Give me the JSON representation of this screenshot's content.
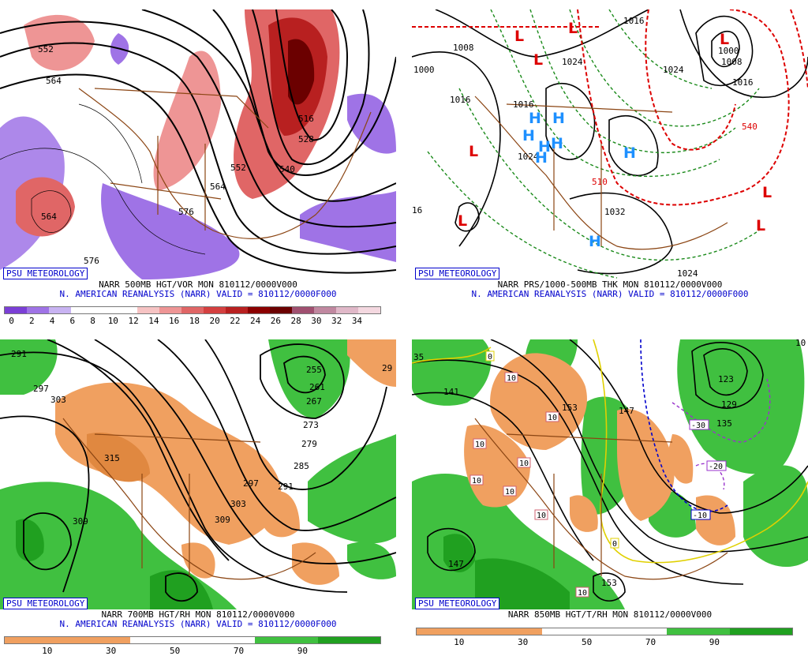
{
  "panels": [
    {
      "id": "p1",
      "badge": "PSU METEOROLOGY",
      "caption1": "NARR 500MB HGT/VOR MON 810112/0000V000",
      "caption2": "N. AMERICAN REANALYSIS (NARR) VALID = 810112/0000F000",
      "colorbar": {
        "colors": [
          "#7b3fd6",
          "#9f73e6",
          "#c8b3f2",
          "#ffffff",
          "#ffffff",
          "#ffffff",
          "#f6c3c3",
          "#ee9595",
          "#e06666",
          "#d44040",
          "#b82020",
          "#8b0000",
          "#6b0000",
          "#a05070",
          "#c088a0",
          "#e0b8c8",
          "#f4d8e0"
        ],
        "ticks": [
          "0",
          "2",
          "4",
          "6",
          "8",
          "10",
          "12",
          "14",
          "16",
          "18",
          "20",
          "22",
          "24",
          "26",
          "28",
          "30",
          "32",
          "34"
        ]
      },
      "contour_labels": [
        "552",
        "564",
        "516",
        "528",
        "552",
        "540",
        "564",
        "576",
        "564",
        "576"
      ]
    },
    {
      "id": "p2",
      "badge": "PSU METEOROLOGY",
      "caption1": "NARR PRS/1000-500MB THK MON 810112/0000V000",
      "caption2": "N. AMERICAN REANALYSIS (NARR) VALID = 810112/0000F000",
      "contour_labels": [
        "1016",
        "1008",
        "1000",
        "1016",
        "1024",
        "1024",
        "1024",
        "1032",
        "1024",
        "1016",
        "1008",
        "1016",
        "1024",
        "1000",
        "16",
        "510",
        "540"
      ],
      "pressure_centers": [
        "L",
        "L",
        "L",
        "L",
        "L",
        "L",
        "L",
        "L",
        "H",
        "H",
        "H",
        "H",
        "H",
        "H",
        "H",
        "H"
      ]
    },
    {
      "id": "p3",
      "badge": "PSU METEOROLOGY",
      "caption1": "NARR 700MB HGT/RH MON 810112/0000V000",
      "caption2": "N. AMERICAN REANALYSIS (NARR) VALID = 810112/0000F000",
      "colorbar": {
        "colors": [
          "#f0a060",
          "#f0a060",
          "#ffffff",
          "#ffffff",
          "#40c040",
          "#20a020"
        ],
        "ticks": [
          "10",
          "30",
          "50",
          "70",
          "90"
        ]
      },
      "contour_labels": [
        "291",
        "297",
        "303",
        "255",
        "261",
        "267",
        "273",
        "279",
        "285",
        "291",
        "297",
        "303",
        "309",
        "315",
        "309",
        "29"
      ]
    },
    {
      "id": "p4",
      "badge": "PSU METEOROLOGY",
      "caption1": "NARR 850MB HGT/T/RH MON 810112/0000V000",
      "colorbar": {
        "colors": [
          "#f0a060",
          "#f0a060",
          "#ffffff",
          "#ffffff",
          "#40c040",
          "#20a020"
        ],
        "ticks": [
          "10",
          "30",
          "50",
          "70",
          "90"
        ]
      },
      "contour_labels": [
        "35",
        "141",
        "153",
        "147",
        "123",
        "129",
        "135",
        "147",
        "153",
        "10"
      ],
      "temp_labels": [
        "0",
        "10",
        "10",
        "10",
        "10",
        "10",
        "10",
        "10",
        "10",
        "0",
        "-30",
        "-20",
        "-10"
      ]
    }
  ]
}
